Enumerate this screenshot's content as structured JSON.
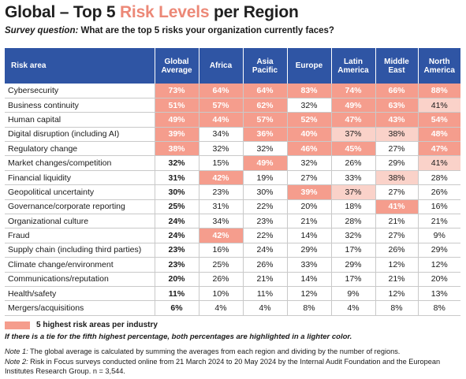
{
  "title": {
    "prefix": "Global – Top 5 ",
    "accent": "Risk Levels",
    "suffix": " per Region"
  },
  "subtitle": {
    "label": "Survey question:",
    "text": " What are the top 5 risks your organization currently faces?"
  },
  "table": {
    "headers": [
      "Risk area",
      "Global\nAverage",
      "Africa",
      "Asia\nPacific",
      "Europe",
      "Latin\nAmerica",
      "Middle\nEast",
      "North\nAmerica"
    ],
    "rows": [
      {
        "label": "Cybersecurity",
        "cells": [
          {
            "v": "73%",
            "s": "hi"
          },
          {
            "v": "64%",
            "s": "hi"
          },
          {
            "v": "64%",
            "s": "hi"
          },
          {
            "v": "83%",
            "s": "hi"
          },
          {
            "v": "74%",
            "s": "hi"
          },
          {
            "v": "66%",
            "s": "hi"
          },
          {
            "v": "88%",
            "s": "hi"
          }
        ]
      },
      {
        "label": "Business continuity",
        "cells": [
          {
            "v": "51%",
            "s": "hi"
          },
          {
            "v": "57%",
            "s": "hi"
          },
          {
            "v": "62%",
            "s": "hi"
          },
          {
            "v": "32%",
            "s": ""
          },
          {
            "v": "49%",
            "s": "hi"
          },
          {
            "v": "63%",
            "s": "hi"
          },
          {
            "v": "41%",
            "s": "lo"
          }
        ]
      },
      {
        "label": "Human capital",
        "cells": [
          {
            "v": "49%",
            "s": "hi"
          },
          {
            "v": "44%",
            "s": "hi"
          },
          {
            "v": "57%",
            "s": "hi"
          },
          {
            "v": "52%",
            "s": "hi"
          },
          {
            "v": "47%",
            "s": "hi"
          },
          {
            "v": "43%",
            "s": "hi"
          },
          {
            "v": "54%",
            "s": "hi"
          }
        ]
      },
      {
        "label": "Digital disruption (including AI)",
        "cells": [
          {
            "v": "39%",
            "s": "hi"
          },
          {
            "v": "34%",
            "s": ""
          },
          {
            "v": "36%",
            "s": "hi"
          },
          {
            "v": "40%",
            "s": "hi"
          },
          {
            "v": "37%",
            "s": "lo"
          },
          {
            "v": "38%",
            "s": "lo"
          },
          {
            "v": "48%",
            "s": "hi"
          }
        ]
      },
      {
        "label": "Regulatory change",
        "cells": [
          {
            "v": "38%",
            "s": "hi"
          },
          {
            "v": "32%",
            "s": ""
          },
          {
            "v": "32%",
            "s": ""
          },
          {
            "v": "46%",
            "s": "hi"
          },
          {
            "v": "45%",
            "s": "hi"
          },
          {
            "v": "27%",
            "s": ""
          },
          {
            "v": "47%",
            "s": "hi"
          }
        ]
      },
      {
        "label": "Market changes/competition",
        "cells": [
          {
            "v": "32%",
            "s": ""
          },
          {
            "v": "15%",
            "s": ""
          },
          {
            "v": "49%",
            "s": "hi"
          },
          {
            "v": "32%",
            "s": ""
          },
          {
            "v": "26%",
            "s": ""
          },
          {
            "v": "29%",
            "s": ""
          },
          {
            "v": "41%",
            "s": "lo"
          }
        ]
      },
      {
        "label": "Financial liquidity",
        "cells": [
          {
            "v": "31%",
            "s": ""
          },
          {
            "v": "42%",
            "s": "hi"
          },
          {
            "v": "19%",
            "s": ""
          },
          {
            "v": "27%",
            "s": ""
          },
          {
            "v": "33%",
            "s": ""
          },
          {
            "v": "38%",
            "s": "lo"
          },
          {
            "v": "28%",
            "s": ""
          }
        ]
      },
      {
        "label": "Geopolitical uncertainty",
        "cells": [
          {
            "v": "30%",
            "s": ""
          },
          {
            "v": "23%",
            "s": ""
          },
          {
            "v": "30%",
            "s": ""
          },
          {
            "v": "39%",
            "s": "hi"
          },
          {
            "v": "37%",
            "s": "lo"
          },
          {
            "v": "27%",
            "s": ""
          },
          {
            "v": "26%",
            "s": ""
          }
        ]
      },
      {
        "label": "Governance/corporate reporting",
        "cells": [
          {
            "v": "25%",
            "s": ""
          },
          {
            "v": "31%",
            "s": ""
          },
          {
            "v": "22%",
            "s": ""
          },
          {
            "v": "20%",
            "s": ""
          },
          {
            "v": "18%",
            "s": ""
          },
          {
            "v": "41%",
            "s": "hi"
          },
          {
            "v": "16%",
            "s": ""
          }
        ]
      },
      {
        "label": "Organizational culture",
        "cells": [
          {
            "v": "24%",
            "s": ""
          },
          {
            "v": "34%",
            "s": ""
          },
          {
            "v": "23%",
            "s": ""
          },
          {
            "v": "21%",
            "s": ""
          },
          {
            "v": "28%",
            "s": ""
          },
          {
            "v": "21%",
            "s": ""
          },
          {
            "v": "21%",
            "s": ""
          }
        ]
      },
      {
        "label": "Fraud",
        "cells": [
          {
            "v": "24%",
            "s": ""
          },
          {
            "v": "42%",
            "s": "hi"
          },
          {
            "v": "22%",
            "s": ""
          },
          {
            "v": "14%",
            "s": ""
          },
          {
            "v": "32%",
            "s": ""
          },
          {
            "v": "27%",
            "s": ""
          },
          {
            "v": "9%",
            "s": ""
          }
        ]
      },
      {
        "label": "Supply chain (including third parties)",
        "cells": [
          {
            "v": "23%",
            "s": ""
          },
          {
            "v": "16%",
            "s": ""
          },
          {
            "v": "24%",
            "s": ""
          },
          {
            "v": "29%",
            "s": ""
          },
          {
            "v": "17%",
            "s": ""
          },
          {
            "v": "26%",
            "s": ""
          },
          {
            "v": "29%",
            "s": ""
          }
        ]
      },
      {
        "label": "Climate change/environment",
        "cells": [
          {
            "v": "23%",
            "s": ""
          },
          {
            "v": "25%",
            "s": ""
          },
          {
            "v": "26%",
            "s": ""
          },
          {
            "v": "33%",
            "s": ""
          },
          {
            "v": "29%",
            "s": ""
          },
          {
            "v": "12%",
            "s": ""
          },
          {
            "v": "12%",
            "s": ""
          }
        ]
      },
      {
        "label": "Communications/reputation",
        "cells": [
          {
            "v": "20%",
            "s": ""
          },
          {
            "v": "26%",
            "s": ""
          },
          {
            "v": "21%",
            "s": ""
          },
          {
            "v": "14%",
            "s": ""
          },
          {
            "v": "17%",
            "s": ""
          },
          {
            "v": "21%",
            "s": ""
          },
          {
            "v": "20%",
            "s": ""
          }
        ]
      },
      {
        "label": "Health/safety",
        "cells": [
          {
            "v": "11%",
            "s": ""
          },
          {
            "v": "10%",
            "s": ""
          },
          {
            "v": "11%",
            "s": ""
          },
          {
            "v": "12%",
            "s": ""
          },
          {
            "v": "9%",
            "s": ""
          },
          {
            "v": "12%",
            "s": ""
          },
          {
            "v": "13%",
            "s": ""
          }
        ]
      },
      {
        "label": "Mergers/acquisitions",
        "cells": [
          {
            "v": "6%",
            "s": ""
          },
          {
            "v": "4%",
            "s": ""
          },
          {
            "v": "4%",
            "s": ""
          },
          {
            "v": "8%",
            "s": ""
          },
          {
            "v": "4%",
            "s": ""
          },
          {
            "v": "8%",
            "s": ""
          },
          {
            "v": "8%",
            "s": ""
          }
        ]
      }
    ]
  },
  "legend": {
    "label": "5 highest risk areas per industry",
    "color": "#f59d8d"
  },
  "tie_note": "If there is a tie for the fifth highest percentage, both percentages are highlighted in a lighter color.",
  "notes": [
    {
      "label": "Note 1:",
      "text": " The global average is calculated by summing the averages from each region and dividing by the number of regions."
    },
    {
      "label": "Note 2:",
      "text": " Risk in Focus surveys conducted online from 21 March 2024 to 20 May 2024 by the Internal Audit Foundation and the European",
      "cont": "Institutes Research Group. n = 3,544."
    }
  ],
  "colors": {
    "header_bg": "#2f55a4",
    "highlight": "#f59d8d",
    "highlight_light": "#fad2c9",
    "title_accent": "#ec8877"
  }
}
